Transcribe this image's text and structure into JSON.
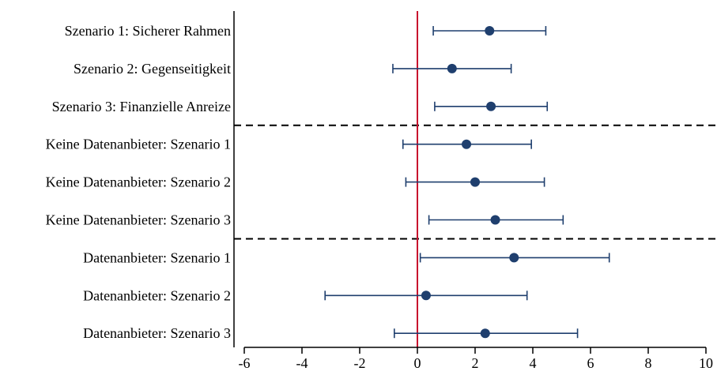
{
  "chart_data": {
    "type": "scatter",
    "subtype": "coefficient-plot",
    "title": "",
    "xlabel": "",
    "ylabel": "",
    "xlim": [
      -6.5,
      10.5
    ],
    "xticks": [
      -6,
      -4,
      -2,
      0,
      2,
      4,
      6,
      8,
      10
    ],
    "reference_line": {
      "x": 0,
      "color": "#c8102e"
    },
    "separators_after_rows": [
      2,
      5
    ],
    "grid": false,
    "legend": "none",
    "point_color": "#1f3f6e",
    "rows": [
      {
        "label": "Szenario 1: Sicherer Rahmen",
        "estimate": 2.5,
        "ci_low": 0.55,
        "ci_high": 4.45
      },
      {
        "label": "Szenario 2: Gegenseitigkeit",
        "estimate": 1.2,
        "ci_low": -0.85,
        "ci_high": 3.25
      },
      {
        "label": "Szenario 3: Finanzielle Anreize",
        "estimate": 2.55,
        "ci_low": 0.6,
        "ci_high": 4.5
      },
      {
        "label": "Keine Datenanbieter: Szenario 1",
        "estimate": 1.7,
        "ci_low": -0.5,
        "ci_high": 3.95
      },
      {
        "label": "Keine Datenanbieter: Szenario 2",
        "estimate": 2.0,
        "ci_low": -0.4,
        "ci_high": 4.4
      },
      {
        "label": "Keine Datenanbieter: Szenario 3",
        "estimate": 2.7,
        "ci_low": 0.4,
        "ci_high": 5.05
      },
      {
        "label": "Datenanbieter: Szenario 1",
        "estimate": 3.35,
        "ci_low": 0.1,
        "ci_high": 6.65
      },
      {
        "label": "Datenanbieter: Szenario 2",
        "estimate": 0.3,
        "ci_low": -3.2,
        "ci_high": 3.8
      },
      {
        "label": "Datenanbieter: Szenario 3",
        "estimate": 2.35,
        "ci_low": -0.8,
        "ci_high": 5.55
      }
    ]
  }
}
